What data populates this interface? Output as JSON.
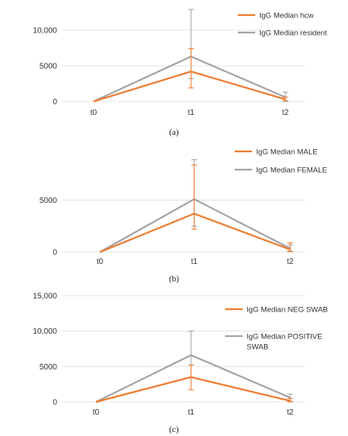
{
  "chart_data": [
    {
      "type": "line",
      "panel_label": "(a)",
      "categories": [
        "t0",
        "t1",
        "t2"
      ],
      "yticks": [
        "0",
        "5000",
        "10,000"
      ],
      "ylim": [
        0,
        12000
      ],
      "grid": true,
      "legend_position": "top-right",
      "series": [
        {
          "name": "IgG Median hcw",
          "color": "#ED7D31",
          "values": [
            0,
            4200,
            300
          ],
          "err_low": [
            0,
            1900,
            100
          ],
          "err_high": [
            0,
            7400,
            600
          ]
        },
        {
          "name": "IgG Median resident",
          "color": "#A5A5A5",
          "values": [
            0,
            6300,
            600
          ],
          "err_low": [
            0,
            3200,
            0
          ],
          "err_high": [
            0,
            12900,
            1300
          ]
        }
      ]
    },
    {
      "type": "line",
      "panel_label": "(b)",
      "categories": [
        "t0",
        "t1",
        "t2"
      ],
      "yticks": [
        "0",
        "5000"
      ],
      "ylim": [
        0,
        10000
      ],
      "grid": true,
      "legend_position": "top-right",
      "series": [
        {
          "name": "IgG Median MALE",
          "color": "#ED7D31",
          "values": [
            0,
            3700,
            250
          ],
          "err_low": [
            0,
            2200,
            50
          ],
          "err_high": [
            0,
            8400,
            900
          ]
        },
        {
          "name": "IgG Median FEMALE",
          "color": "#A5A5A5",
          "values": [
            0,
            5100,
            350
          ],
          "err_low": [
            0,
            2500,
            100
          ],
          "err_high": [
            0,
            8900,
            700
          ]
        }
      ]
    },
    {
      "type": "line",
      "panel_label": "(c)",
      "categories": [
        "t0",
        "t1",
        "t2"
      ],
      "yticks": [
        "0",
        "5000",
        "10,000",
        "15,000"
      ],
      "ylim": [
        0,
        15000
      ],
      "grid": true,
      "legend_position": "top-right",
      "series": [
        {
          "name": "IgG Median NEG SWAB",
          "color": "#ED7D31",
          "values": [
            0,
            3500,
            150
          ],
          "err_low": [
            0,
            1700,
            0
          ],
          "err_high": [
            0,
            5200,
            500
          ]
        },
        {
          "name": "IgG Median POSITIVE SWAB",
          "color": "#A5A5A5",
          "values": [
            0,
            6600,
            600
          ],
          "err_low": [
            0,
            3500,
            100
          ],
          "err_high": [
            0,
            10000,
            1100
          ]
        }
      ]
    }
  ]
}
